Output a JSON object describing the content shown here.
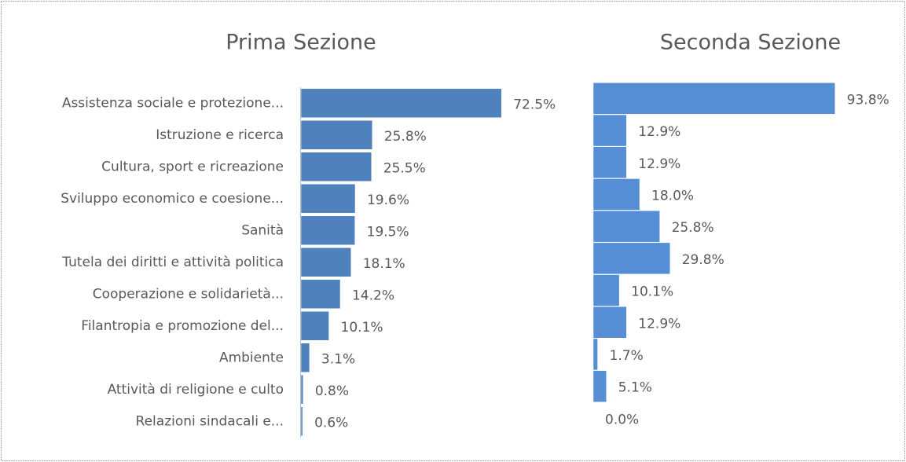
{
  "chart_data": [
    {
      "type": "bar",
      "orientation": "horizontal",
      "title": "Prima Sezione",
      "color": "#4f81bd",
      "categories": [
        "Assistenza sociale e protezione...",
        "Istruzione e ricerca",
        "Cultura, sport e ricreazione",
        "Sviluppo economico e coesione...",
        "Sanità",
        "Tutela dei diritti e attività politica",
        "Cooperazione e solidarietà...",
        "Filantropia e promozione del...",
        "Ambiente",
        "Attività di religione e culto",
        "Relazioni sindacali e..."
      ],
      "values": [
        72.5,
        25.8,
        25.5,
        19.6,
        19.5,
        18.1,
        14.2,
        10.1,
        3.1,
        0.8,
        0.6
      ],
      "value_labels": [
        "72.5%",
        "25.8%",
        "25.5%",
        "19.6%",
        "19.5%",
        "18.1%",
        "14.2%",
        "10.1%",
        "3.1%",
        "0.8%",
        "0.6%"
      ]
    },
    {
      "type": "bar",
      "orientation": "horizontal",
      "title": "Seconda Sezione",
      "color": "#558ed5",
      "values": [
        93.8,
        12.9,
        12.9,
        18.0,
        25.8,
        29.8,
        10.1,
        12.9,
        1.7,
        5.1,
        0.0
      ],
      "value_labels": [
        "93.8%",
        "12.9%",
        "12.9%",
        "18.0%",
        "25.8%",
        "29.8%",
        "10.1%",
        "12.9%",
        "1.7%",
        "5.1%",
        "0.0%"
      ]
    }
  ]
}
